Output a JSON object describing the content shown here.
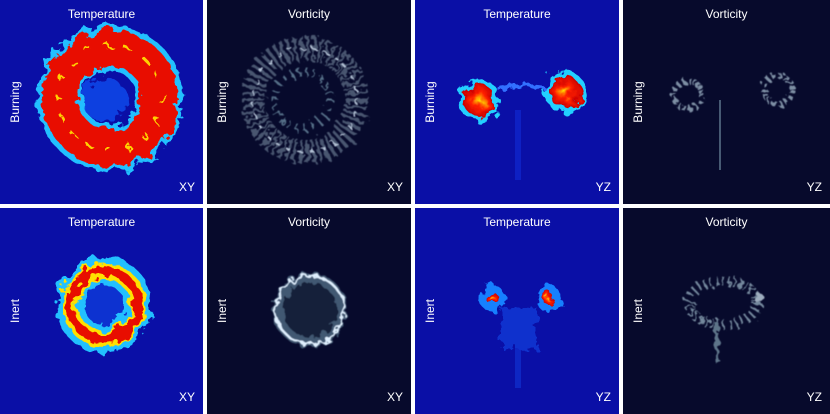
{
  "panels": [
    {
      "title": "Temperature",
      "row_label": "Burning",
      "plane": "XY"
    },
    {
      "title": "Vorticity",
      "row_label": "Burning",
      "plane": "XY"
    },
    {
      "title": "Temperature",
      "row_label": "Burning",
      "plane": "YZ"
    },
    {
      "title": "Vorticity",
      "row_label": "Burning",
      "plane": "YZ"
    },
    {
      "title": "Temperature",
      "row_label": "Inert",
      "plane": "XY"
    },
    {
      "title": "Vorticity",
      "row_label": "Inert",
      "plane": "XY"
    },
    {
      "title": "Temperature",
      "row_label": "Inert",
      "plane": "YZ"
    },
    {
      "title": "Vorticity",
      "row_label": "Inert",
      "plane": "YZ"
    }
  ]
}
